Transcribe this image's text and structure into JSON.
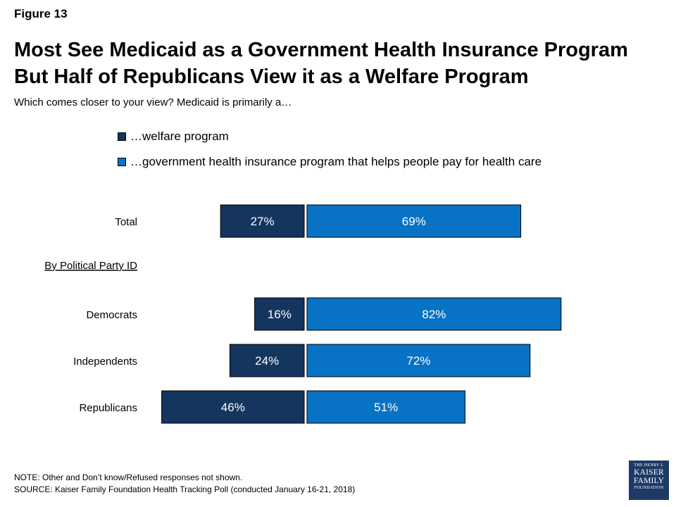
{
  "figure_label": "Figure 13",
  "title_line1": "Most See Medicaid as a Government Health Insurance Program",
  "title_line2": "But Half of Republicans View it as a Welfare Program",
  "subtitle": "Which comes closer to your view? Medicaid is primarily a…",
  "colors": {
    "welfare": "#13355e",
    "insurance": "#0872c4",
    "border": "#000000",
    "label_text": "#ffffff"
  },
  "chart_data": {
    "type": "bar",
    "orientation": "horizontal-diverging",
    "series": [
      {
        "name": "…welfare program",
        "values": [
          27,
          16,
          24,
          46
        ]
      },
      {
        "name": "…government health insurance program that helps people pay for health care",
        "values": [
          69,
          82,
          72,
          51
        ]
      }
    ],
    "rows": [
      {
        "label": "Total",
        "welfare": 27,
        "insurance": 69,
        "welfare_label": "27%",
        "insurance_label": "69%"
      },
      {
        "label": "Democrats",
        "welfare": 16,
        "insurance": 82,
        "welfare_label": "16%",
        "insurance_label": "82%"
      },
      {
        "label": "Independents",
        "welfare": 24,
        "insurance": 72,
        "welfare_label": "24%",
        "insurance_label": "72%"
      },
      {
        "label": "Republicans",
        "welfare": 46,
        "insurance": 51,
        "welfare_label": "46%",
        "insurance_label": "51%"
      }
    ],
    "group_heading": "By Political Party ID",
    "xlim": [
      0,
      100
    ],
    "grid": false,
    "legend_position": "top"
  },
  "footnotes": {
    "note": "NOTE: Other and Don’t know/Refused responses not shown.",
    "source": "SOURCE: Kaiser Family Foundation Health Tracking Poll (conducted January 16-21, 2018)"
  },
  "logo": {
    "line1": "THE HENRY J.",
    "line2": "KAISER",
    "line3": "FAMILY",
    "line4": "FOUNDATION"
  }
}
